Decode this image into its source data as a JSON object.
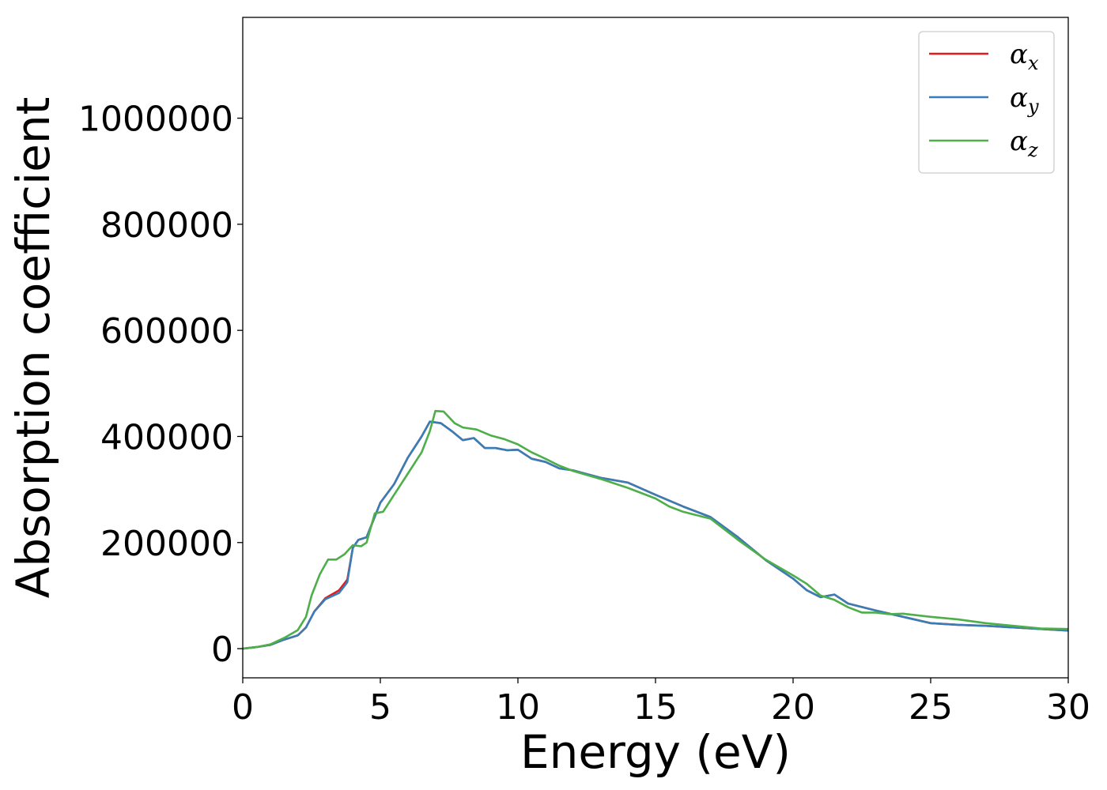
{
  "chart_data": {
    "type": "line",
    "title": "",
    "xlabel": "Energy (eV)",
    "ylabel": "Absorption coefficient",
    "xlim": [
      0,
      30
    ],
    "ylim": [
      -55000,
      1190000
    ],
    "xticks": [
      0,
      5,
      10,
      15,
      20,
      25,
      30
    ],
    "yticks": [
      0,
      200000,
      400000,
      600000,
      800000,
      1000000
    ],
    "grid": false,
    "legend_position": "top-right",
    "series": [
      {
        "name": "α",
        "subscript": "x",
        "color": "#e41a1c",
        "points": [
          [
            0,
            0
          ],
          [
            0.5,
            3000
          ],
          [
            1,
            7000
          ],
          [
            1.5,
            17000
          ],
          [
            2,
            25000
          ],
          [
            2.3,
            40000
          ],
          [
            2.6,
            70000
          ],
          [
            3,
            95000
          ],
          [
            3.5,
            110000
          ],
          [
            3.8,
            130000
          ],
          [
            4,
            190000
          ],
          [
            4.2,
            205000
          ],
          [
            4.5,
            210000
          ],
          [
            5,
            275000
          ],
          [
            5.5,
            310000
          ],
          [
            6,
            360000
          ],
          [
            6.5,
            400000
          ],
          [
            6.8,
            428000
          ],
          [
            7.2,
            425000
          ],
          [
            7.6,
            410000
          ],
          [
            8,
            393000
          ],
          [
            8.4,
            397000
          ],
          [
            8.8,
            378000
          ],
          [
            9.2,
            378000
          ],
          [
            9.6,
            374000
          ],
          [
            10,
            375000
          ],
          [
            10.5,
            358000
          ],
          [
            11,
            352000
          ],
          [
            11.5,
            340000
          ],
          [
            12,
            336000
          ],
          [
            13,
            322000
          ],
          [
            14,
            313000
          ],
          [
            15,
            290000
          ],
          [
            16,
            268000
          ],
          [
            17,
            248000
          ],
          [
            18,
            210000
          ],
          [
            19,
            167000
          ],
          [
            20,
            132000
          ],
          [
            20.5,
            110000
          ],
          [
            21,
            97000
          ],
          [
            21.5,
            102000
          ],
          [
            22,
            85000
          ],
          [
            23,
            72000
          ],
          [
            24,
            60000
          ],
          [
            25,
            48000
          ],
          [
            26,
            45000
          ],
          [
            27,
            43000
          ],
          [
            28,
            40000
          ],
          [
            29,
            37000
          ],
          [
            30,
            34000
          ]
        ]
      },
      {
        "name": "α",
        "subscript": "y",
        "color": "#377eb8",
        "points": [
          [
            0,
            0
          ],
          [
            0.5,
            3000
          ],
          [
            1,
            7000
          ],
          [
            1.5,
            17000
          ],
          [
            2,
            25000
          ],
          [
            2.3,
            40000
          ],
          [
            2.6,
            70000
          ],
          [
            3,
            93000
          ],
          [
            3.5,
            105000
          ],
          [
            3.8,
            125000
          ],
          [
            4,
            190000
          ],
          [
            4.2,
            205000
          ],
          [
            4.5,
            210000
          ],
          [
            5,
            275000
          ],
          [
            5.5,
            310000
          ],
          [
            6,
            360000
          ],
          [
            6.5,
            400000
          ],
          [
            6.8,
            428000
          ],
          [
            7.2,
            425000
          ],
          [
            7.6,
            410000
          ],
          [
            8,
            393000
          ],
          [
            8.4,
            397000
          ],
          [
            8.8,
            378000
          ],
          [
            9.2,
            378000
          ],
          [
            9.6,
            374000
          ],
          [
            10,
            375000
          ],
          [
            10.5,
            358000
          ],
          [
            11,
            352000
          ],
          [
            11.5,
            340000
          ],
          [
            12,
            336000
          ],
          [
            13,
            322000
          ],
          [
            14,
            313000
          ],
          [
            15,
            290000
          ],
          [
            16,
            268000
          ],
          [
            17,
            248000
          ],
          [
            18,
            210000
          ],
          [
            19,
            167000
          ],
          [
            20,
            132000
          ],
          [
            20.5,
            110000
          ],
          [
            21,
            97000
          ],
          [
            21.5,
            102000
          ],
          [
            22,
            85000
          ],
          [
            23,
            72000
          ],
          [
            24,
            60000
          ],
          [
            25,
            48000
          ],
          [
            26,
            45000
          ],
          [
            27,
            43000
          ],
          [
            28,
            40000
          ],
          [
            29,
            37000
          ],
          [
            30,
            34000
          ]
        ]
      },
      {
        "name": "α",
        "subscript": "z",
        "color": "#4daf4a",
        "points": [
          [
            0,
            0
          ],
          [
            0.5,
            3000
          ],
          [
            1,
            8000
          ],
          [
            1.5,
            20000
          ],
          [
            2,
            35000
          ],
          [
            2.3,
            60000
          ],
          [
            2.5,
            100000
          ],
          [
            2.8,
            140000
          ],
          [
            3.1,
            168000
          ],
          [
            3.4,
            168000
          ],
          [
            3.7,
            178000
          ],
          [
            4,
            195000
          ],
          [
            4.3,
            193000
          ],
          [
            4.5,
            200000
          ],
          [
            4.8,
            255000
          ],
          [
            5.1,
            258000
          ],
          [
            5.5,
            290000
          ],
          [
            6,
            330000
          ],
          [
            6.5,
            370000
          ],
          [
            6.8,
            410000
          ],
          [
            7,
            448000
          ],
          [
            7.3,
            447000
          ],
          [
            7.7,
            425000
          ],
          [
            8,
            417000
          ],
          [
            8.5,
            413000
          ],
          [
            9,
            402000
          ],
          [
            9.5,
            395000
          ],
          [
            10,
            385000
          ],
          [
            10.5,
            370000
          ],
          [
            11,
            358000
          ],
          [
            11.5,
            345000
          ],
          [
            12,
            335000
          ],
          [
            13,
            320000
          ],
          [
            14,
            303000
          ],
          [
            15,
            283000
          ],
          [
            15.5,
            268000
          ],
          [
            16,
            258000
          ],
          [
            17,
            245000
          ],
          [
            18,
            205000
          ],
          [
            19,
            168000
          ],
          [
            20,
            138000
          ],
          [
            20.5,
            122000
          ],
          [
            21,
            100000
          ],
          [
            21.5,
            92000
          ],
          [
            22,
            78000
          ],
          [
            22.5,
            68000
          ],
          [
            23,
            68000
          ],
          [
            23.5,
            65000
          ],
          [
            24,
            66000
          ],
          [
            25,
            60000
          ],
          [
            26,
            55000
          ],
          [
            27,
            48000
          ],
          [
            28,
            43000
          ],
          [
            29,
            38000
          ],
          [
            30,
            37000
          ]
        ]
      }
    ]
  }
}
